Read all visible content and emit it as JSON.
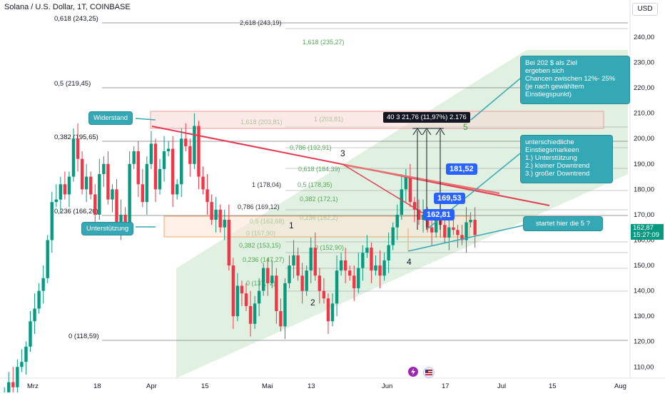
{
  "header": {
    "title": "Solana / U.S. Dollar, 1T, COINBASE"
  },
  "currency": "USD",
  "price_axis": {
    "labels": [
      "240,00",
      "230,00",
      "220,00",
      "210,00",
      "200,00",
      "190,00",
      "180,00",
      "170,00",
      "160,00",
      "150,00",
      "140,00",
      "130,00",
      "120,00",
      "110,00"
    ],
    "current_price": "162,87",
    "countdown": "15:27:09"
  },
  "time_axis": {
    "labels": [
      "Mrz",
      "18",
      "Apr",
      "15",
      "Mai",
      "13",
      "Jun",
      "17",
      "Jul",
      "15",
      "Aug"
    ]
  },
  "fib_left": {
    "labels": [
      "0,618 (243,25)",
      "0,5 (219,45)",
      "0,382 (195,65)",
      "0,236 (166,20)",
      "0 (118,59)"
    ]
  },
  "fib_mid": {
    "labels": [
      "2,618 (243,19)",
      "1,618 (235,27)",
      "1,618 (203,81)",
      "1 (203,81)",
      "0,786 (192,91)",
      "0,618 (184,39)",
      "1 (178,04)",
      "0,5 (178,35)",
      "0,382 (172,1)",
      "0,786 (169,12)",
      "0,236 (162,2)",
      "0,5 (162,68)",
      "0 (157,90)",
      "0,382 (153,15)",
      "0,236 (147,27)",
      "0 (137,72)",
      "0 (152,90)"
    ]
  },
  "waves": [
    "1",
    "2",
    "3",
    "4",
    "5"
  ],
  "measure_tool": {
    "prefix": "40",
    "mid": "3",
    "text": "21,76 (11,97%) 2.176"
  },
  "callouts": {
    "resistance": "Widerstand",
    "support": "Unterstützung",
    "target": [
      "Bei 202 $ als Ziel",
      "ergeben sich",
      "Chancen zwischen 12%- 25%",
      "(je nach gewähltem",
      "Einstiegspunkt)"
    ],
    "entries": [
      "unterschiedliche",
      "Einstiegsmarkeen",
      "1.) Unterstützung",
      "2.) kleiner Downtrend",
      "3.) großer Downtrend"
    ],
    "wave5": "startet hier die 5 ?"
  },
  "entry_labels": [
    "181,52",
    "169,53",
    "162,81"
  ],
  "colors": {
    "up": "#089981",
    "down": "#f23645",
    "accent": "#2962ff",
    "callout": "#35a8b5",
    "trend": "#e53950",
    "channel": "#c8e6c9"
  },
  "icons": [
    "lightning-icon",
    "flag-icon"
  ],
  "chart_data": {
    "type": "candlestick",
    "ylim": [
      104,
      247
    ],
    "grid": true,
    "series": [
      {
        "name": "Solana / U.S. Dollar",
        "close": [
          100,
          104,
          102,
          110,
          112,
          118,
          128,
          133,
          140,
          145,
          160,
          175,
          176,
          182,
          178,
          185,
          200,
          192,
          180,
          185,
          178,
          170,
          186,
          190,
          176,
          180,
          165,
          170,
          167,
          190,
          195,
          182,
          175,
          190,
          198,
          180,
          188,
          195,
          196,
          178,
          182,
          200,
          197,
          190,
          205,
          185,
          180,
          175,
          168,
          172,
          165,
          168,
          150,
          130,
          142,
          139,
          134,
          127,
          135,
          140,
          149,
          143,
          146,
          132,
          126,
          143,
          150,
          154,
          146,
          140,
          148,
          157,
          146,
          140,
          137,
          128,
          135,
          148,
          152,
          148,
          146,
          141,
          149,
          155,
          157,
          148,
          150,
          146,
          152,
          158,
          165,
          170,
          180,
          185,
          175,
          172,
          168,
          170,
          165,
          163,
          170,
          166,
          161,
          165,
          164,
          162,
          160,
          167,
          168,
          162
        ]
      }
    ]
  }
}
